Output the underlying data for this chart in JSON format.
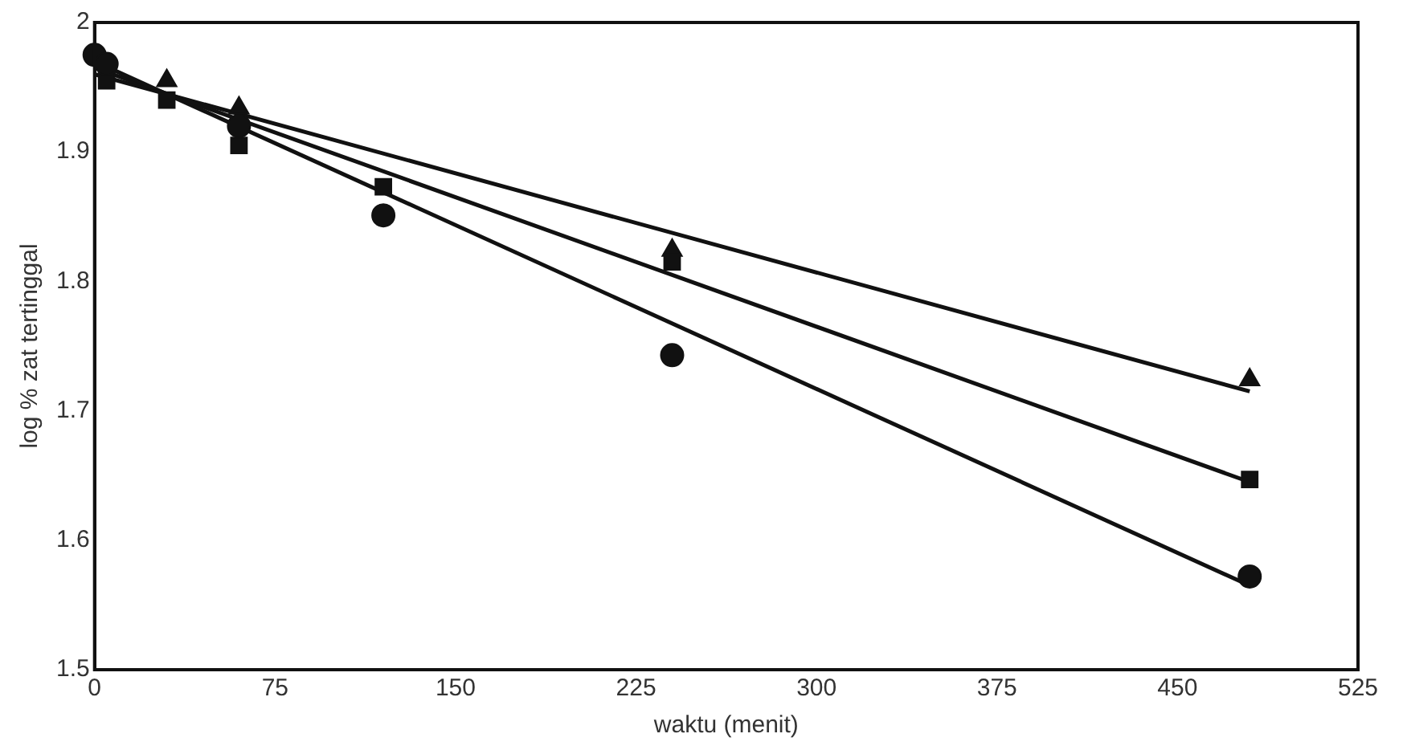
{
  "chart_data": {
    "type": "scatter",
    "xlabel": "waktu (menit)",
    "ylabel": "log % zat tertinggal",
    "xlim": [
      0,
      525
    ],
    "xticks": [
      0,
      75,
      150,
      225,
      300,
      375,
      450,
      525
    ],
    "ylim": [
      1.5,
      2
    ],
    "yticks": [
      1.5,
      1.6,
      1.7,
      1.8,
      1.9,
      2
    ],
    "grid": false,
    "legend": false,
    "series": [
      {
        "marker": "circle",
        "color": "#111111",
        "x": [
          0,
          5,
          60,
          120,
          240,
          480
        ],
        "values": [
          1.975,
          1.968,
          1.92,
          1.851,
          1.743,
          1.572
        ]
      },
      {
        "marker": "square",
        "color": "#111111",
        "x": [
          5,
          30,
          60,
          120,
          240,
          480
        ],
        "values": [
          1.955,
          1.94,
          1.905,
          1.873,
          1.815,
          1.647
        ]
      },
      {
        "marker": "triangle",
        "color": "#111111",
        "x": [
          30,
          60,
          240,
          480
        ],
        "values": [
          1.955,
          1.934,
          1.824,
          1.724
        ]
      },
      {
        "type": "line",
        "marker": "none",
        "color": "#111111",
        "x": [
          0,
          480
        ],
        "values": [
          1.97,
          1.565
        ]
      },
      {
        "type": "line",
        "marker": "none",
        "color": "#111111",
        "x": [
          0,
          480
        ],
        "values": [
          1.965,
          1.645
        ]
      },
      {
        "type": "line",
        "marker": "none",
        "color": "#111111",
        "x": [
          0,
          480
        ],
        "values": [
          1.96,
          1.715
        ]
      }
    ]
  }
}
